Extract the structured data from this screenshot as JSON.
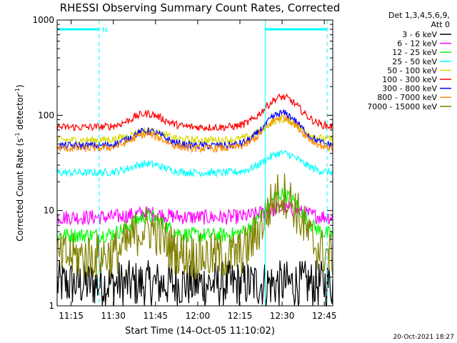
{
  "chart_data": {
    "type": "line",
    "title": "RHESSI Observing Summary Count Rates, Corrected",
    "xlabel": "Start Time (14-Oct-05 11:10:02)",
    "ylabel_main": "Corrected Count Rate (s",
    "ylabel_sup1": "-1",
    "ylabel_mid": " detector",
    "ylabel_sup2": "-1",
    "ylabel_end": ")",
    "yscale": "log",
    "ylim": [
      1,
      1000
    ],
    "yticks": [
      "1",
      "10",
      "100",
      "1000"
    ],
    "xlim": [
      "11:10:02",
      "12:48"
    ],
    "xticks": [
      "11:15",
      "11:30",
      "11:45",
      "12:00",
      "12:15",
      "12:30",
      "12:45"
    ],
    "legend_title_1": "Det 1,3,4,5,6,9,",
    "legend_title_2": "Att 0",
    "legend_position": "top-right",
    "footer": "20-Oct-2021 18:27",
    "markers": {
      "night_bars": [
        [
          "11:10:02",
          "11:25"
        ],
        [
          "12:24",
          "12:46"
        ]
      ],
      "N_label": "N",
      "solid_lines": [
        "11:10:02",
        "12:24"
      ],
      "dashed_lines": [
        "11:25",
        "12:46"
      ]
    },
    "series": [
      {
        "name": "3 - 6 keV",
        "color": "#000000",
        "base": 1.7,
        "peak": 1.7
      },
      {
        "name": "6 - 12 keV",
        "color": "#ff00ff",
        "base": 8.5,
        "peak": 10.5
      },
      {
        "name": "12 - 25 keV",
        "color": "#00ff00",
        "base": 5.5,
        "peak": 15
      },
      {
        "name": "25 - 50 keV",
        "color": "#00ffff",
        "base": 25,
        "peak": 40
      },
      {
        "name": "50 - 100 keV",
        "color": "#d8d800",
        "base": 55,
        "peak": 90
      },
      {
        "name": "100 - 300 keV",
        "color": "#ff0000",
        "base": 75,
        "peak": 155
      },
      {
        "name": "300 - 800 keV",
        "color": "#0000ff",
        "base": 48,
        "peak": 105
      },
      {
        "name": "800 - 7000 keV",
        "color": "#ff8c00",
        "base": 45,
        "peak": 95
      },
      {
        "name": "7000 - 15000 keV",
        "color": "#808000",
        "base": 3.3,
        "peak": 15
      }
    ]
  }
}
